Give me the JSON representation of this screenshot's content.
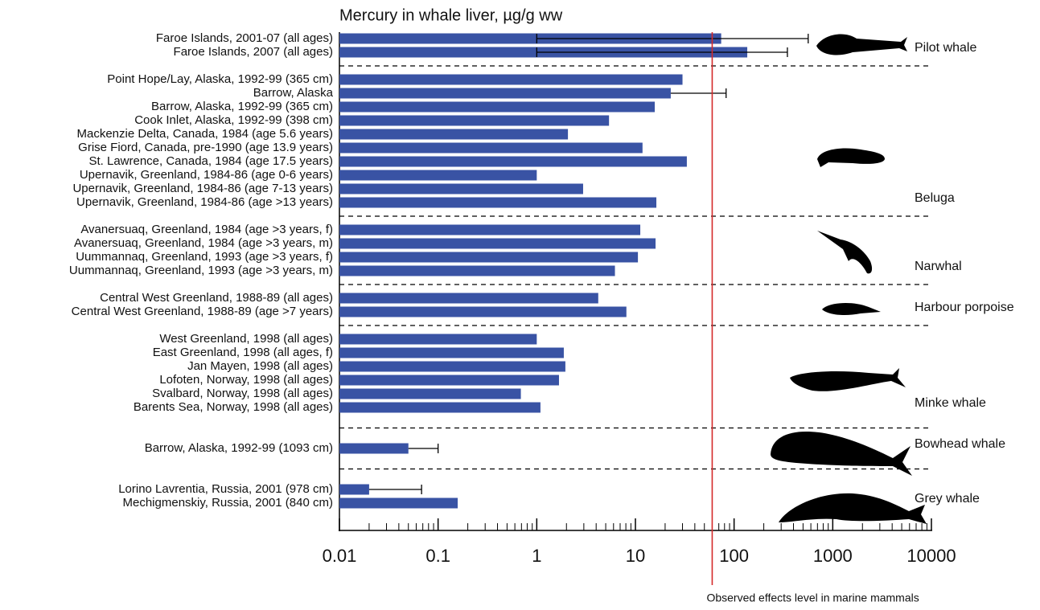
{
  "chart_data": {
    "type": "bar",
    "orientation": "horizontal",
    "title": "Mercury in whale liver, µg/g ww",
    "color": "#3953a4",
    "log_x": true,
    "xlim": [
      0.01,
      10000
    ],
    "xticks": [
      0.01,
      0.1,
      1,
      10,
      100,
      1000,
      10000
    ],
    "xminorticks": [
      0.02,
      0.03,
      0.04,
      0.05,
      0.06,
      0.07,
      0.08,
      0.09,
      0.2,
      0.3,
      0.4,
      0.5,
      0.6,
      0.7,
      0.8,
      0.9,
      2,
      3,
      4,
      5,
      6,
      7,
      8,
      9,
      20,
      30,
      40,
      50,
      60,
      70,
      80,
      90,
      200,
      300,
      400,
      500,
      600,
      700,
      800,
      900,
      2000,
      3000,
      4000,
      5000,
      6000,
      7000,
      8000,
      9000
    ],
    "reference_line": {
      "value": 60,
      "label": "Observed effects level in marine mammals",
      "color": "#d42a2a"
    },
    "groups": [
      {
        "name": "Pilot whale",
        "categories": [
          "Faroe Islands, 2001-07 (all ages)",
          "Faroe Islands, 2007 (all ages)"
        ],
        "values": [
          74,
          136
        ],
        "error_low": [
          1,
          1
        ],
        "error_high": [
          564,
          347
        ]
      },
      {
        "name": "Beluga",
        "categories": [
          "Point Hope/Lay, Alaska, 1992-99 (365 cm)",
          "Barrow, Alaska",
          "Barrow, Alaska, 1992-99 (365 cm)",
          "Cook Inlet, Alaska, 1992-99 (398 cm)",
          "Mackenzie Delta, Canada, 1984 (age 5.6 years)",
          "Grise Fiord, Canada, pre-1990 (age 13.9 years)",
          "St. Lawrence, Canada, 1984 (age 17.5 years)",
          "Upernavik, Greenland, 1984-86 (age 0-6 years)",
          "Upernavik, Greenland, 1984-86 (age 7-13 years)",
          "Upernavik, Greenland, 1984-86 (age >13 years)"
        ],
        "values": [
          30,
          22.8,
          15.7,
          5.4,
          2.07,
          11.8,
          33.2,
          1.0,
          2.95,
          16.3
        ],
        "error_low": [
          null,
          null,
          null,
          null,
          null,
          null,
          null,
          null,
          null,
          null
        ],
        "error_high": [
          null,
          83,
          null,
          null,
          null,
          null,
          null,
          null,
          null,
          null
        ]
      },
      {
        "name": "Narwhal",
        "categories": [
          "Avanersuaq, Greenland, 1984 (age >3 years, f)",
          "Avanersuaq, Greenland, 1984 (age >3 years, m)",
          "Uummannaq, Greenland, 1993 (age >3 years, f)",
          "Uummannaq, Greenland, 1993 (age >3 years, m)"
        ],
        "values": [
          11.2,
          16,
          10.6,
          6.2
        ],
        "error_low": [
          null,
          null,
          null,
          null
        ],
        "error_high": [
          null,
          null,
          null,
          null
        ]
      },
      {
        "name": "Harbour porpoise",
        "categories": [
          "Central West Greenland, 1988-89 (all ages)",
          "Central West Greenland, 1988-89 (age >7 years)"
        ],
        "values": [
          4.2,
          8.1
        ],
        "error_low": [
          null,
          null
        ],
        "error_high": [
          null,
          null
        ]
      },
      {
        "name": "Minke whale",
        "categories": [
          "West Greenland, 1998 (all ages)",
          "East Greenland, 1998 (all ages, f)",
          "Jan Mayen, 1998 (all ages)",
          "Lofoten, Norway, 1998 (all ages)",
          "Svalbard, Norway, 1998 (all ages)",
          "Barents Sea, Norway, 1998 (all ages)"
        ],
        "values": [
          1.0,
          1.88,
          1.95,
          1.68,
          0.69,
          1.09
        ],
        "error_low": [
          null,
          null,
          null,
          null,
          null,
          null
        ],
        "error_high": [
          null,
          null,
          null,
          null,
          null,
          null
        ]
      },
      {
        "name": "Bowhead whale",
        "categories": [
          "Barrow, Alaska, 1992-99 (1093 cm)"
        ],
        "values": [
          0.05
        ],
        "error_low": [
          null
        ],
        "error_high": [
          0.1
        ]
      },
      {
        "name": "Grey whale",
        "categories": [
          "Lorino Lavrentia, Russia, 2001 (978 cm)",
          "Mechigmenskiy, Russia, 2001 (840 cm)"
        ],
        "values": [
          0.02,
          0.158
        ],
        "error_low": [
          null,
          null
        ],
        "error_high": [
          0.068,
          null
        ]
      }
    ]
  }
}
